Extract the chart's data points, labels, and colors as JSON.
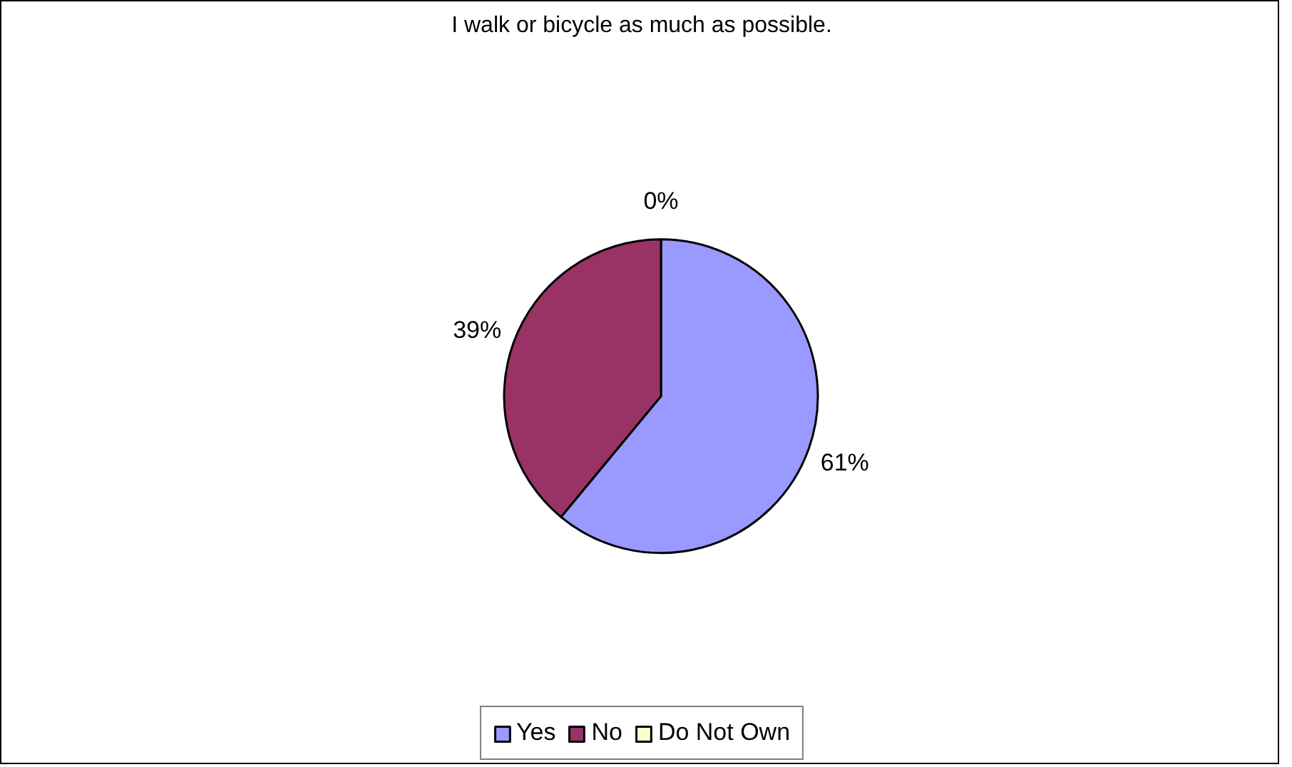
{
  "chart_data": {
    "type": "pie",
    "title": "I walk or bicycle as much as possible.",
    "categories": [
      "Yes",
      "No",
      "Do Not Own"
    ],
    "values": [
      61,
      39,
      0
    ],
    "colors": [
      "#9999ff",
      "#993366",
      "#ffffcc"
    ],
    "value_labels": [
      "61%",
      "39%",
      "0%"
    ],
    "legend": "bottom"
  }
}
